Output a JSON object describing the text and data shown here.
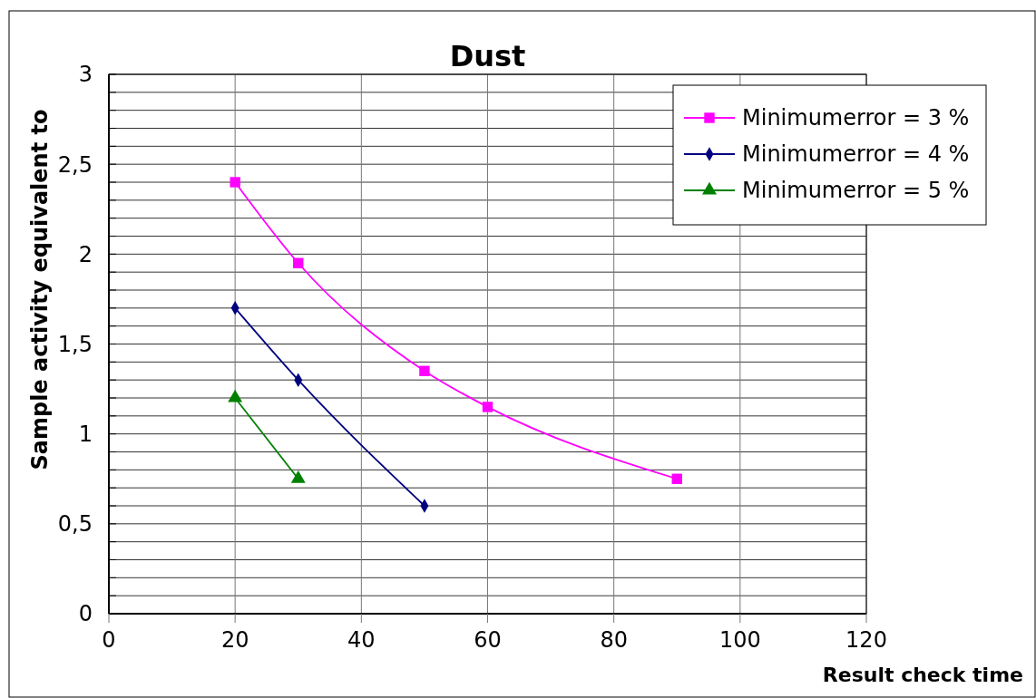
{
  "chart_data": {
    "type": "line",
    "title": "Dust",
    "xlabel": "Result check time",
    "ylabel": "Sample activity equivalent to",
    "xlim": [
      0,
      120
    ],
    "xticks": [
      0,
      20,
      40,
      60,
      80,
      100,
      120
    ],
    "ylim": [
      0,
      3
    ],
    "yticks": [
      0,
      {
        "value": 0.1,
        "label": null
      },
      {
        "value": 0.2,
        "label": null
      },
      {
        "value": 0.3,
        "label": null
      },
      {
        "value": 0.4,
        "label": null
      },
      {
        "value": 0.5,
        "label": "0,5"
      },
      {
        "value": 0.6,
        "label": null
      },
      {
        "value": 0.7,
        "label": null
      },
      {
        "value": 0.8,
        "label": null
      },
      {
        "value": 0.9,
        "label": null
      },
      1,
      {
        "value": 1.1,
        "label": null
      },
      {
        "value": 1.2,
        "label": null
      },
      {
        "value": 1.3,
        "label": null
      },
      {
        "value": 1.4,
        "label": null
      },
      {
        "value": 1.5,
        "label": "1,5"
      },
      {
        "value": 1.6,
        "label": null
      },
      {
        "value": 1.7,
        "label": null
      },
      {
        "value": 1.8,
        "label": null
      },
      {
        "value": 1.9,
        "label": null
      },
      2,
      {
        "value": 2.1,
        "label": null
      },
      {
        "value": 2.2,
        "label": null
      },
      {
        "value": 2.3,
        "label": null
      },
      {
        "value": 2.4,
        "label": null
      },
      {
        "value": 2.5,
        "label": "2,5"
      },
      {
        "value": 2.6,
        "label": null
      },
      {
        "value": 2.7,
        "label": null
      },
      {
        "value": 2.8,
        "label": null
      },
      {
        "value": 2.9,
        "label": null
      },
      3
    ],
    "grid": true,
    "legend": "top right",
    "line_style": "solid",
    "series": [
      {
        "name": "Minimumerror = 3 %",
        "color": "#ff00ff",
        "marker": "square",
        "x": [
          20,
          30,
          50,
          60,
          90
        ],
        "values": [
          2.4,
          1.95,
          1.35,
          1.15,
          0.75
        ]
      },
      {
        "name": "Minimumerror = 4 %",
        "color": "#000080",
        "marker": "diamond",
        "x": [
          20,
          30,
          50
        ],
        "values": [
          1.7,
          1.3,
          0.6
        ]
      },
      {
        "name": "Minimumerror = 5 %",
        "color": "#008000",
        "marker": "triangle",
        "x": [
          20,
          30
        ],
        "values": [
          1.2,
          0.75
        ]
      }
    ]
  }
}
